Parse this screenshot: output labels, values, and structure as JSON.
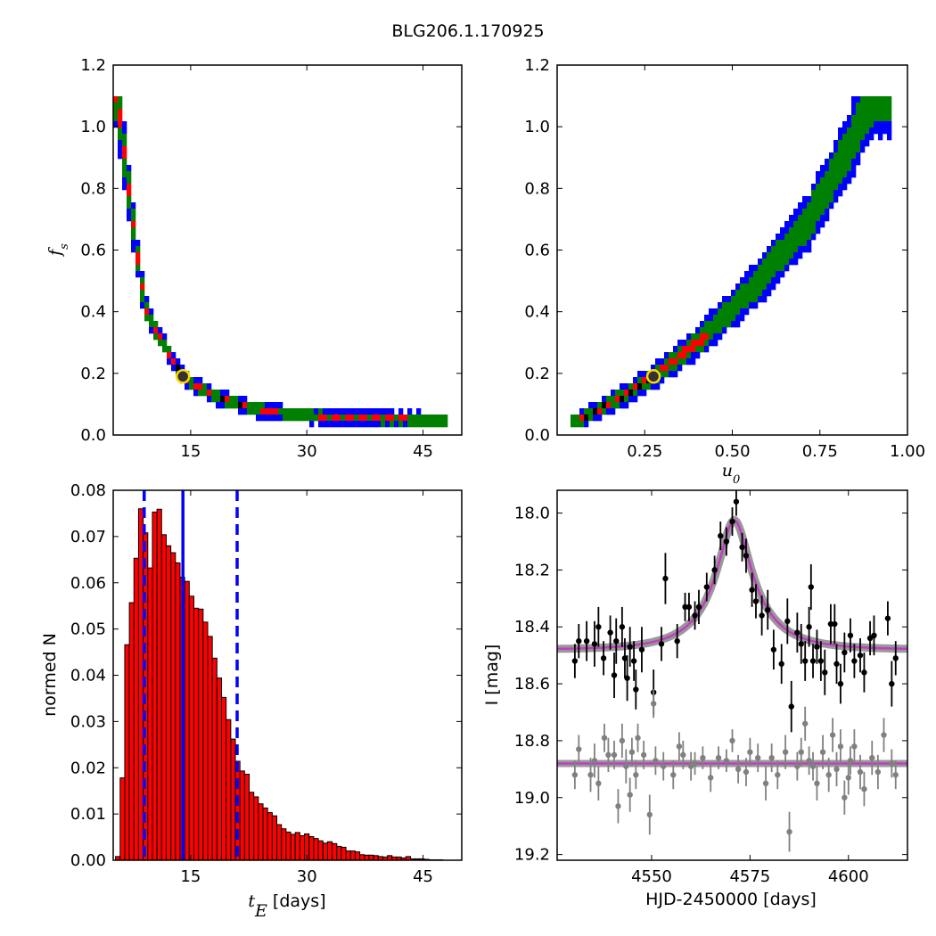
{
  "title": "BLG206.1.170925",
  "colors": {
    "three_sigma": "#0000ff",
    "two_sigma": "#008000",
    "one_sigma": "#ff0000",
    "best": "#000000",
    "marker_face": "#333333",
    "marker_edge": "#ffd700",
    "hist_fill": "#ff0000",
    "median_line": "#0000ff",
    "model": "#bf3fbf",
    "model_band": "#808080",
    "data_primary": "#000000",
    "data_secondary": "#808080"
  },
  "chart_data": [
    {
      "id": "fs_vs_tE",
      "type": "heatmap",
      "xlabel": "",
      "ylabel": "f_s",
      "xlim": [
        5,
        50
      ],
      "ylim": [
        0.0,
        1.2
      ],
      "xticks": [
        15,
        30,
        45
      ],
      "yticks": [
        0.0,
        0.2,
        0.4,
        0.6,
        0.8,
        1.0,
        1.2
      ],
      "best_fit": {
        "x": 14,
        "y": 0.19
      },
      "curve": [
        [
          5.5,
          1.1
        ],
        [
          7,
          0.8
        ],
        [
          8,
          0.6
        ],
        [
          9,
          0.43
        ],
        [
          10,
          0.36
        ],
        [
          11,
          0.32
        ],
        [
          12,
          0.27
        ],
        [
          13,
          0.23
        ],
        [
          14,
          0.19
        ],
        [
          16,
          0.155
        ],
        [
          18,
          0.13
        ],
        [
          20,
          0.11
        ],
        [
          23,
          0.085
        ],
        [
          27,
          0.07
        ],
        [
          32,
          0.06
        ],
        [
          38,
          0.055
        ],
        [
          45,
          0.05
        ],
        [
          48,
          0.045
        ]
      ],
      "region_widths": {
        "one_sigma": [
          0.4,
          0.6
        ],
        "two_sigma": [
          1.2,
          1.6
        ],
        "three_sigma": [
          2.0,
          2.6
        ]
      }
    },
    {
      "id": "fs_vs_u0",
      "type": "heatmap",
      "xlabel": "u_0",
      "ylabel": "",
      "xlim": [
        0.0,
        1.0
      ],
      "ylim": [
        0.0,
        1.2
      ],
      "xticks": [
        0.25,
        0.5,
        0.75,
        1.0
      ],
      "yticks": [
        0.0,
        0.2,
        0.4,
        0.6,
        0.8,
        1.0,
        1.2
      ],
      "best_fit": {
        "x": 0.275,
        "y": 0.19
      },
      "curve": [
        [
          0.06,
          0.045
        ],
        [
          0.1,
          0.07
        ],
        [
          0.15,
          0.1
        ],
        [
          0.2,
          0.135
        ],
        [
          0.275,
          0.19
        ],
        [
          0.35,
          0.255
        ],
        [
          0.42,
          0.32
        ],
        [
          0.5,
          0.41
        ],
        [
          0.58,
          0.5
        ],
        [
          0.65,
          0.6
        ],
        [
          0.72,
          0.7
        ],
        [
          0.78,
          0.82
        ],
        [
          0.84,
          0.95
        ],
        [
          0.88,
          1.05
        ],
        [
          0.9,
          1.1
        ]
      ],
      "region_widths": {
        "one_sigma": [
          0.035,
          0.015
        ],
        "two_sigma": [
          0.045,
          0.03
        ],
        "three_sigma": [
          0.06,
          0.045
        ]
      }
    },
    {
      "id": "tE_histogram",
      "type": "bar",
      "xlabel_math": "t",
      "xlabel_sub": "E",
      "xlabel_unit": " [days]",
      "ylabel": "normed N",
      "xlim": [
        5,
        50
      ],
      "ylim": [
        0.0,
        0.08
      ],
      "xticks": [
        15,
        30,
        45
      ],
      "yticks": [
        0.0,
        0.01,
        0.02,
        0.03,
        0.04,
        0.05,
        0.06,
        0.07,
        0.08
      ],
      "ytick_labels": [
        "0.00",
        "0.01",
        "0.02",
        "0.03",
        "0.04",
        "0.05",
        "0.06",
        "0.07",
        "0.08"
      ],
      "bin_start": 5.3,
      "bin_width": 0.595,
      "values": [
        0.0008,
        0.0178,
        0.0466,
        0.0557,
        0.0653,
        0.076,
        0.0708,
        0.0632,
        0.0753,
        0.0759,
        0.0704,
        0.068,
        0.0665,
        0.0643,
        0.0612,
        0.0603,
        0.0571,
        0.0545,
        0.0543,
        0.0515,
        0.0484,
        0.0437,
        0.0394,
        0.0352,
        0.0304,
        0.0262,
        0.0214,
        0.0193,
        0.0186,
        0.0147,
        0.0137,
        0.0122,
        0.0113,
        0.0103,
        0.0096,
        0.0077,
        0.0068,
        0.0061,
        0.0056,
        0.006,
        0.0053,
        0.0057,
        0.0051,
        0.0047,
        0.0042,
        0.0037,
        0.004,
        0.0036,
        0.003,
        0.0028,
        0.002,
        0.002,
        0.0018,
        0.0012,
        0.0011,
        0.0011,
        0.001,
        0.0008,
        0.0007,
        0.001,
        0.0007,
        0.0007,
        0.0005,
        0.0008,
        0.0003,
        0.0003,
        0.0003,
        0.0002,
        0.0001,
        0.0001,
        0.0001
      ],
      "median": 14.0,
      "interval": [
        9.0,
        21.0
      ]
    },
    {
      "id": "light_curve",
      "type": "scatter",
      "xlabel": "HJD-2450000 [days]",
      "ylabel": "I [mag]",
      "xlim": [
        4526,
        4615
      ],
      "ylim": [
        19.22,
        17.92
      ],
      "y_inverted": true,
      "xticks": [
        4550,
        4575,
        4600
      ],
      "yticks": [
        18.0,
        18.2,
        18.4,
        18.6,
        18.8,
        19.0,
        19.2
      ],
      "ytick_labels": [
        "18.0",
        "18.2",
        "18.4",
        "18.6",
        "18.8",
        "19.0",
        "19.2"
      ],
      "model": {
        "t0": 4571.0,
        "u0": 0.275,
        "tE": 14.0,
        "fs": 0.19,
        "base_mag": 18.48,
        "peak_mag": 18.02
      },
      "secondary_baseline": 18.88,
      "series": [
        {
          "color": "#000000",
          "points": [
            [
              4530.5,
              18.52,
              0.06
            ],
            [
              4531.5,
              18.45,
              0.06
            ],
            [
              4533.5,
              18.45,
              0.07
            ],
            [
              4535.5,
              18.46,
              0.08
            ],
            [
              4536.5,
              18.4,
              0.07
            ],
            [
              4537.8,
              18.51,
              0.06
            ],
            [
              4539.5,
              18.42,
              0.06
            ],
            [
              4540.5,
              18.57,
              0.08
            ],
            [
              4541,
              18.45,
              0.08
            ],
            [
              4542.5,
              18.4,
              0.07
            ],
            [
              4543.2,
              18.51,
              0.07
            ],
            [
              4543.8,
              18.58,
              0.08
            ],
            [
              4544.5,
              18.47,
              0.07
            ],
            [
              4545.5,
              18.52,
              0.07
            ],
            [
              4546,
              18.62,
              0.07
            ],
            [
              4547.5,
              18.48,
              0.08
            ],
            [
              4550.5,
              18.63,
              0.08
            ],
            [
              4552.5,
              18.46,
              0.06
            ],
            [
              4553.5,
              18.23,
              0.09
            ],
            [
              4556.5,
              18.45,
              0.06
            ],
            [
              4558.5,
              18.33,
              0.05
            ],
            [
              4559.5,
              18.33,
              0.05
            ],
            [
              4561,
              18.36,
              0.05
            ],
            [
              4562,
              18.33,
              0.06
            ],
            [
              4564,
              18.26,
              0.05
            ],
            [
              4566,
              18.2,
              0.05
            ],
            [
              4567.5,
              18.08,
              0.05
            ],
            [
              4569,
              18.1,
              0.05
            ],
            [
              4570.5,
              18.03,
              0.05
            ],
            [
              4571.5,
              17.96,
              0.05
            ],
            [
              4573,
              18.12,
              0.05
            ],
            [
              4574,
              18.15,
              0.06
            ],
            [
              4575.5,
              18.27,
              0.06
            ],
            [
              4576.5,
              18.31,
              0.06
            ],
            [
              4578,
              18.36,
              0.07
            ],
            [
              4579.5,
              18.34,
              0.07
            ],
            [
              4581,
              18.48,
              0.07
            ],
            [
              4583,
              18.53,
              0.07
            ],
            [
              4584.5,
              18.38,
              0.08
            ],
            [
              4585.5,
              18.68,
              0.09
            ],
            [
              4587,
              18.42,
              0.07
            ],
            [
              4588,
              18.46,
              0.07
            ],
            [
              4589,
              18.52,
              0.07
            ],
            [
              4590,
              18.4,
              0.07
            ],
            [
              4590.5,
              18.26,
              0.08
            ],
            [
              4591,
              18.52,
              0.06
            ],
            [
              4592,
              18.47,
              0.06
            ],
            [
              4593,
              18.52,
              0.07
            ],
            [
              4594,
              18.56,
              0.08
            ],
            [
              4595.5,
              18.39,
              0.07
            ],
            [
              4596.5,
              18.39,
              0.07
            ],
            [
              4597,
              18.53,
              0.07
            ],
            [
              4598,
              18.6,
              0.07
            ],
            [
              4599,
              18.49,
              0.07
            ],
            [
              4600.5,
              18.43,
              0.06
            ],
            [
              4601.5,
              18.52,
              0.06
            ],
            [
              4603,
              18.5,
              0.06
            ],
            [
              4604,
              18.56,
              0.07
            ],
            [
              4605.5,
              18.44,
              0.06
            ],
            [
              4606.5,
              18.43,
              0.07
            ],
            [
              4610,
              18.37,
              0.06
            ],
            [
              4611,
              18.6,
              0.08
            ],
            [
              4612,
              18.51,
              0.06
            ]
          ]
        },
        {
          "color": "#808080",
          "points": [
            [
              4530.5,
              18.92,
              0.05
            ],
            [
              4531.5,
              18.83,
              0.05
            ],
            [
              4534.5,
              18.92,
              0.06
            ],
            [
              4535.5,
              18.87,
              0.06
            ],
            [
              4536.5,
              18.95,
              0.06
            ],
            [
              4538,
              18.79,
              0.05
            ],
            [
              4539,
              18.85,
              0.06
            ],
            [
              4540.5,
              18.85,
              0.05
            ],
            [
              4541.5,
              19.03,
              0.06
            ],
            [
              4542.5,
              18.8,
              0.06
            ],
            [
              4543.5,
              18.89,
              0.06
            ],
            [
              4544.5,
              18.99,
              0.06
            ],
            [
              4545,
              18.84,
              0.05
            ],
            [
              4546,
              18.92,
              0.05
            ],
            [
              4546.5,
              18.79,
              0.05
            ],
            [
              4548,
              18.85,
              0.05
            ],
            [
              4549.5,
              19.06,
              0.07
            ],
            [
              4550.5,
              18.67,
              0.05
            ],
            [
              4551,
              18.87,
              0.05
            ],
            [
              4553,
              18.89,
              0.05
            ],
            [
              4555.5,
              18.92,
              0.05
            ],
            [
              4557,
              18.82,
              0.05
            ],
            [
              4558,
              18.85,
              0.05
            ],
            [
              4560,
              18.89,
              0.05
            ],
            [
              4561,
              18.88,
              0.04
            ],
            [
              4563,
              18.86,
              0.04
            ],
            [
              4565,
              18.93,
              0.05
            ],
            [
              4567,
              18.86,
              0.04
            ],
            [
              4569,
              18.87,
              0.04
            ],
            [
              4570.5,
              18.8,
              0.04
            ],
            [
              4572,
              18.9,
              0.05
            ],
            [
              4574,
              18.91,
              0.05
            ],
            [
              4575,
              18.84,
              0.05
            ],
            [
              4577,
              18.86,
              0.05
            ],
            [
              4579,
              18.95,
              0.06
            ],
            [
              4580.5,
              18.86,
              0.05
            ],
            [
              4582,
              18.92,
              0.05
            ],
            [
              4584,
              18.84,
              0.06
            ],
            [
              4585,
              19.12,
              0.07
            ],
            [
              4587,
              18.89,
              0.05
            ],
            [
              4588,
              18.84,
              0.05
            ],
            [
              4589,
              18.74,
              0.06
            ],
            [
              4590,
              18.87,
              0.05
            ],
            [
              4591,
              18.89,
              0.05
            ],
            [
              4592,
              18.95,
              0.06
            ],
            [
              4593.5,
              18.84,
              0.06
            ],
            [
              4595,
              18.92,
              0.06
            ],
            [
              4596,
              18.78,
              0.06
            ],
            [
              4597,
              18.9,
              0.06
            ],
            [
              4598,
              18.82,
              0.06
            ],
            [
              4599,
              19.0,
              0.06
            ],
            [
              4600,
              18.93,
              0.06
            ],
            [
              4600.5,
              18.87,
              0.05
            ],
            [
              4601.5,
              18.82,
              0.06
            ],
            [
              4603,
              18.91,
              0.06
            ],
            [
              4604,
              18.97,
              0.06
            ],
            [
              4606,
              18.86,
              0.06
            ],
            [
              4607.5,
              18.91,
              0.06
            ],
            [
              4609,
              18.78,
              0.06
            ],
            [
              4611,
              18.88,
              0.05
            ],
            [
              4612,
              18.92,
              0.05
            ]
          ]
        }
      ]
    }
  ]
}
